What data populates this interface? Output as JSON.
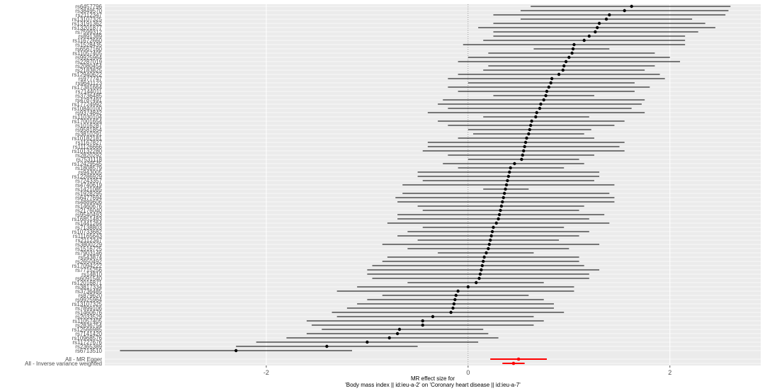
{
  "colors": {
    "panel": "#ebebeb",
    "grid_major": "#ffffff",
    "snp": "#000000",
    "summary": "#ff0000",
    "zero_line": "#7f7f7f"
  },
  "chart_data": {
    "type": "forest",
    "xlabel_line1": "MR effect size for",
    "xlabel_line2": "'Body mass index || id:ieu-a-2' on 'Coronary heart disease || id:ieu-a-7'",
    "xlim": [
      -3.6,
      2.9
    ],
    "xticks": [
      -2,
      0,
      2
    ],
    "xtick_labels": [
      "-2",
      "0",
      "2"
    ],
    "zero_line": "dotted",
    "snps": [
      {
        "label": "rs6457796",
        "est": 1.62,
        "lo": 0.62,
        "hi": 2.6
      },
      {
        "label": "rs3849570",
        "est": 1.55,
        "lo": 0.52,
        "hi": 2.58
      },
      {
        "label": "rs2112347",
        "est": 1.4,
        "lo": 0.25,
        "hi": 2.55
      },
      {
        "label": "rs13107325",
        "est": 1.37,
        "lo": 0.52,
        "hi": 2.22
      },
      {
        "label": "rs13191362",
        "est": 1.3,
        "lo": 0.25,
        "hi": 2.35
      },
      {
        "label": "rs13201877",
        "est": 1.28,
        "lo": 0.1,
        "hi": 2.45
      },
      {
        "label": "rs7599312",
        "est": 1.26,
        "lo": 0.25,
        "hi": 2.28
      },
      {
        "label": "rs891389",
        "est": 1.2,
        "lo": 0.25,
        "hi": 2.15
      },
      {
        "label": "rs11672660",
        "est": 1.15,
        "lo": 0.15,
        "hi": 2.15
      },
      {
        "label": "rs1528435",
        "est": 1.05,
        "lo": -0.05,
        "hi": 2.15
      },
      {
        "label": "rs6567160",
        "est": 1.04,
        "lo": 0.65,
        "hi": 1.4
      },
      {
        "label": "rs11057405",
        "est": 1.03,
        "lo": 0.2,
        "hi": 1.85
      },
      {
        "label": "rs9925964",
        "est": 1.0,
        "lo": 0.0,
        "hi": 2.0
      },
      {
        "label": "rs2287019",
        "est": 0.97,
        "lo": -0.1,
        "hi": 2.1
      },
      {
        "label": "rs2080454",
        "est": 0.95,
        "lo": 0.2,
        "hi": 1.85
      },
      {
        "label": "rs2183825",
        "est": 0.94,
        "lo": 0.15,
        "hi": 1.75
      },
      {
        "label": "rs12940622",
        "est": 0.9,
        "lo": -0.1,
        "hi": 1.9
      },
      {
        "label": "rs977747",
        "est": 0.83,
        "lo": -0.2,
        "hi": 1.95
      },
      {
        "label": "rs9641123",
        "est": 0.82,
        "lo": 0.0,
        "hi": 1.65
      },
      {
        "label": "rs17381664",
        "est": 0.8,
        "lo": -0.2,
        "hi": 1.8
      },
      {
        "label": "rs7144011",
        "est": 0.78,
        "lo": -0.1,
        "hi": 1.65
      },
      {
        "label": "rs3736485",
        "est": 0.77,
        "lo": 0.25,
        "hi": 1.25
      },
      {
        "label": "rs4787491",
        "est": 0.75,
        "lo": -0.25,
        "hi": 1.75
      },
      {
        "label": "rs17724992",
        "est": 0.72,
        "lo": -0.3,
        "hi": 1.72
      },
      {
        "label": "rs10840100",
        "est": 0.71,
        "lo": -0.2,
        "hi": 1.62
      },
      {
        "label": "rs9374842",
        "est": 0.68,
        "lo": -0.4,
        "hi": 1.75
      },
      {
        "label": "rs11030104",
        "est": 0.67,
        "lo": 0.15,
        "hi": 1.2
      },
      {
        "label": "rs17001654",
        "est": 0.63,
        "lo": -0.3,
        "hi": 1.55
      },
      {
        "label": "rs1016287",
        "est": 0.62,
        "lo": -0.2,
        "hi": 1.45
      },
      {
        "label": "rs9581854",
        "est": 0.61,
        "lo": 0.0,
        "hi": 1.22
      },
      {
        "label": "rs3810291",
        "est": 0.6,
        "lo": 0.05,
        "hi": 1.15
      },
      {
        "label": "rs10182181",
        "est": 0.58,
        "lo": -0.1,
        "hi": 1.25
      },
      {
        "label": "rs1167827",
        "est": 0.57,
        "lo": -0.4,
        "hi": 1.55
      },
      {
        "label": "rs11126666",
        "est": 0.56,
        "lo": -0.4,
        "hi": 1.5
      },
      {
        "label": "rs10132280",
        "est": 0.55,
        "lo": -0.45,
        "hi": 1.55
      },
      {
        "label": "rs2820292",
        "est": 0.54,
        "lo": -0.2,
        "hi": 1.25
      },
      {
        "label": "rs7531118",
        "est": 0.53,
        "lo": 0.0,
        "hi": 1.1
      },
      {
        "label": "rs12429545",
        "est": 0.46,
        "lo": -0.25,
        "hi": 1.15
      },
      {
        "label": "rs1808579",
        "est": 0.42,
        "lo": -0.1,
        "hi": 0.95
      },
      {
        "label": "rs943005",
        "est": 0.41,
        "lo": -0.5,
        "hi": 1.3
      },
      {
        "label": "rs12286929",
        "est": 0.4,
        "lo": -0.5,
        "hi": 1.3
      },
      {
        "label": "rs7243357",
        "est": 0.39,
        "lo": -0.45,
        "hi": 1.25
      },
      {
        "label": "rs4740619",
        "est": 0.38,
        "lo": -0.65,
        "hi": 1.45
      },
      {
        "label": "rs1421085",
        "est": 0.37,
        "lo": 0.15,
        "hi": 0.6
      },
      {
        "label": "rs1928295",
        "est": 0.36,
        "lo": -0.65,
        "hi": 1.4
      },
      {
        "label": "rs6477694",
        "est": 0.35,
        "lo": -0.72,
        "hi": 1.45
      },
      {
        "label": "rs4889606",
        "est": 0.34,
        "lo": -0.7,
        "hi": 1.45
      },
      {
        "label": "rs1460676",
        "est": 0.33,
        "lo": -0.5,
        "hi": 1.15
      },
      {
        "label": "rs2176040",
        "est": 0.32,
        "lo": -0.45,
        "hi": 1.1
      },
      {
        "label": "rs9540493",
        "est": 0.31,
        "lo": -0.7,
        "hi": 1.35
      },
      {
        "label": "rs16851483",
        "est": 0.3,
        "lo": -0.7,
        "hi": 1.2
      },
      {
        "label": "rs1441264",
        "est": 0.28,
        "lo": -0.8,
        "hi": 1.4
      },
      {
        "label": "rs7138803",
        "est": 0.25,
        "lo": -0.45,
        "hi": 0.95
      },
      {
        "label": "rs10733682",
        "est": 0.24,
        "lo": -0.6,
        "hi": 1.2
      },
      {
        "label": "rs11165643",
        "est": 0.23,
        "lo": -0.7,
        "hi": 1.1
      },
      {
        "label": "rs2112347",
        "est": 0.22,
        "lo": -0.5,
        "hi": 0.9
      },
      {
        "label": "rs3800229",
        "est": 0.21,
        "lo": -0.85,
        "hi": 1.3
      },
      {
        "label": "rs1516725",
        "est": 0.2,
        "lo": -0.6,
        "hi": 1.0
      },
      {
        "label": "rs7903146",
        "est": 0.18,
        "lo": -0.3,
        "hi": 0.65
      },
      {
        "label": "rs543874",
        "est": 0.16,
        "lo": -0.8,
        "hi": 1.1
      },
      {
        "label": "rs2650492",
        "est": 0.15,
        "lo": -0.85,
        "hi": 1.1
      },
      {
        "label": "rs17094222",
        "est": 0.14,
        "lo": -0.95,
        "hi": 1.15
      },
      {
        "label": "rs7715256",
        "est": 0.13,
        "lo": -1.0,
        "hi": 1.3
      },
      {
        "label": "rs14810",
        "est": 0.12,
        "lo": -1.0,
        "hi": 1.2
      },
      {
        "label": "rs6091540",
        "est": 0.11,
        "lo": -0.95,
        "hi": 1.2
      },
      {
        "label": "rs12016871",
        "est": 0.08,
        "lo": -0.6,
        "hi": 0.75
      },
      {
        "label": "rs3817334",
        "est": 0.0,
        "lo": -1.1,
        "hi": 1.05
      },
      {
        "label": "rs3736485",
        "est": -0.1,
        "lo": -1.3,
        "hi": 1.05
      },
      {
        "label": "rs879620",
        "est": -0.12,
        "lo": -0.85,
        "hi": 0.6
      },
      {
        "label": "rs9925964",
        "est": -0.13,
        "lo": -1.0,
        "hi": 0.75
      },
      {
        "label": "rs13107325",
        "est": -0.14,
        "lo": -1.1,
        "hi": 0.85
      },
      {
        "label": "rs7899106",
        "est": -0.15,
        "lo": -1.2,
        "hi": 0.85
      },
      {
        "label": "rs1460676",
        "est": -0.17,
        "lo": -1.35,
        "hi": 0.95
      },
      {
        "label": "rs2033529",
        "est": -0.35,
        "lo": -1.3,
        "hi": 0.65
      },
      {
        "label": "rs11057405",
        "est": -0.45,
        "lo": -1.6,
        "hi": 0.75
      },
      {
        "label": "rs2836754",
        "est": -0.45,
        "lo": -1.55,
        "hi": 0.65
      },
      {
        "label": "rs12566985",
        "est": -0.68,
        "lo": -1.45,
        "hi": 0.15
      },
      {
        "label": "rs7141420",
        "est": -0.7,
        "lo": -1.6,
        "hi": 0.2
      },
      {
        "label": "rs10968576",
        "est": -0.78,
        "lo": -1.8,
        "hi": 0.3
      },
      {
        "label": "rs11727676",
        "est": -1.0,
        "lo": -2.1,
        "hi": 0.1
      },
      {
        "label": "rs2365389",
        "est": -1.4,
        "lo": -2.3,
        "hi": -0.5
      },
      {
        "label": "rs6713510",
        "est": -2.3,
        "lo": -3.45,
        "hi": -1.15
      }
    ],
    "summary": [
      {
        "label": "All - MR Egger",
        "est": 0.5,
        "lo": 0.22,
        "hi": 0.78
      },
      {
        "label": "All - Inverse variance weighted",
        "est": 0.45,
        "lo": 0.34,
        "hi": 0.56
      }
    ]
  }
}
